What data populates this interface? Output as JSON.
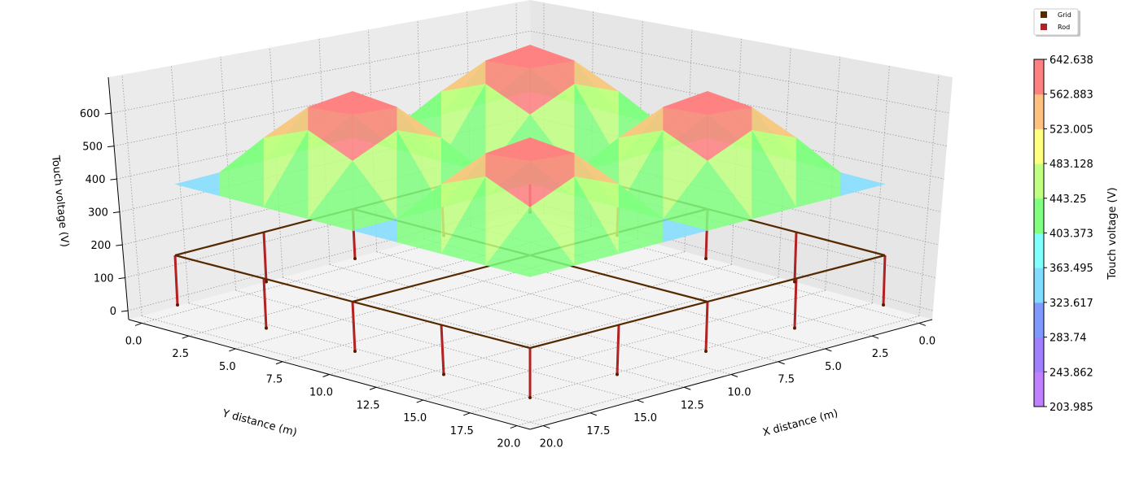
{
  "chart_data": {
    "type": "surface3d",
    "xlabel": "X distance (m)",
    "ylabel": "Y distance (m)",
    "zlabel": "Touch voltage (V)",
    "x_ticks": [
      "0.0",
      "2.5",
      "5.0",
      "7.5",
      "10.0",
      "12.5",
      "15.0",
      "17.5",
      "20.0"
    ],
    "y_ticks": [
      "0.0",
      "2.5",
      "5.0",
      "7.5",
      "10.0",
      "12.5",
      "15.0",
      "17.5",
      "20.0"
    ],
    "z_ticks": [
      "0",
      "100",
      "200",
      "300",
      "400",
      "500",
      "600"
    ],
    "xlim": [
      0,
      20
    ],
    "ylim": [
      0,
      20
    ],
    "grid": true,
    "surface": {
      "x": [
        0,
        2.5,
        5,
        7.5,
        10,
        12.5,
        15,
        17.5,
        20
      ],
      "y": [
        0,
        2.5,
        5,
        7.5,
        10,
        12.5,
        15,
        17.5,
        20
      ],
      "z": [
        [
          360,
          360,
          360,
          360,
          360,
          360,
          360,
          360,
          360
        ],
        [
          360,
          501,
          559,
          501,
          360,
          501,
          559,
          501,
          360
        ],
        [
          360,
          559,
          642,
          559,
          360,
          559,
          642,
          559,
          360
        ],
        [
          360,
          501,
          559,
          501,
          360,
          501,
          559,
          501,
          360
        ],
        [
          360,
          360,
          360,
          360,
          360,
          360,
          360,
          360,
          360
        ],
        [
          360,
          501,
          559,
          501,
          360,
          501,
          559,
          501,
          360
        ],
        [
          360,
          559,
          642,
          559,
          360,
          559,
          642,
          559,
          360
        ],
        [
          360,
          501,
          559,
          501,
          360,
          501,
          559,
          501,
          360
        ],
        [
          360,
          360,
          360,
          360,
          360,
          360,
          360,
          360,
          360
        ]
      ]
    },
    "grid_conductors": [
      [
        [
          0,
          0
        ],
        [
          20,
          0
        ]
      ],
      [
        [
          0,
          10
        ],
        [
          20,
          10
        ]
      ],
      [
        [
          0,
          20
        ],
        [
          20,
          20
        ]
      ],
      [
        [
          0,
          0
        ],
        [
          0,
          20
        ]
      ],
      [
        [
          10,
          0
        ],
        [
          10,
          20
        ]
      ],
      [
        [
          20,
          0
        ],
        [
          20,
          20
        ]
      ]
    ],
    "rods": [
      [
        0,
        0
      ],
      [
        5,
        0
      ],
      [
        10,
        0
      ],
      [
        15,
        0
      ],
      [
        20,
        0
      ],
      [
        20,
        5
      ],
      [
        20,
        10
      ],
      [
        20,
        15
      ],
      [
        20,
        20
      ],
      [
        15,
        20
      ],
      [
        10,
        20
      ],
      [
        5,
        20
      ],
      [
        0,
        20
      ],
      [
        0,
        15
      ],
      [
        0,
        10
      ],
      [
        0,
        5
      ]
    ],
    "legend": {
      "position": "top-right",
      "items": [
        {
          "label": "Grid",
          "color": "#552a00"
        },
        {
          "label": "Rod",
          "color": "#b22222"
        }
      ]
    },
    "colorbar": {
      "label": "Touch voltage (V)",
      "boundaries": [
        203.985,
        243.862,
        283.74,
        323.617,
        363.495,
        403.373,
        443.25,
        483.128,
        523.005,
        562.883,
        642.638
      ],
      "tick_labels": [
        "203.985",
        "243.862",
        "283.74",
        "323.617",
        "363.495",
        "403.373",
        "443.25",
        "483.128",
        "523.005",
        "562.883",
        "642.638"
      ],
      "colors": [
        "#c080ff",
        "#a080ff",
        "#8099ff",
        "#80ddff",
        "#80ffff",
        "#80ff80",
        "#c0ff80",
        "#ffff80",
        "#ffc080",
        "#ff8080"
      ]
    }
  }
}
